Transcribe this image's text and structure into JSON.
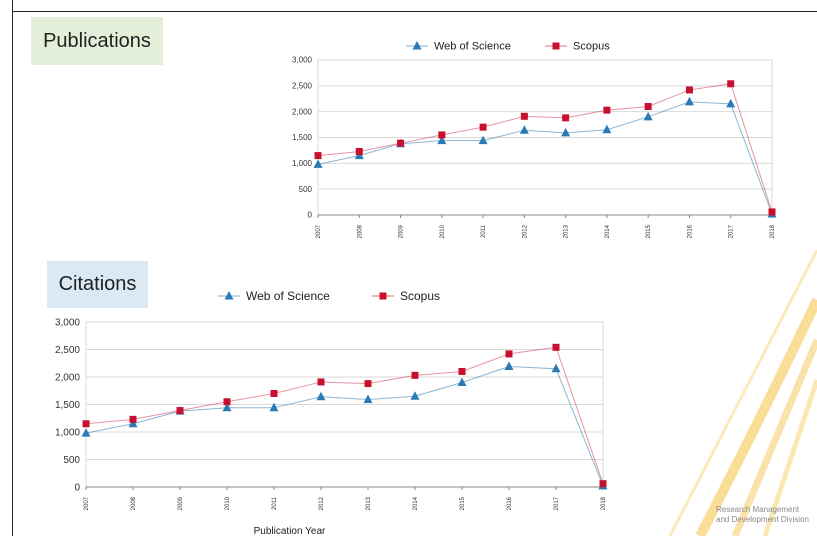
{
  "titles": {
    "publications": "Publications",
    "citations": "Citations"
  },
  "footer": {
    "line1": "Research Management",
    "line2": "and Development Division"
  },
  "colors": {
    "wos": "#2a7ab5",
    "scopus": "#c8102e",
    "grid": "#d9d9d9",
    "decor": "#f5c242"
  },
  "chart_data": [
    {
      "type": "line",
      "title": "",
      "xlabel": "",
      "ylabel": "",
      "categories": [
        "2007",
        "2008",
        "2009",
        "2010",
        "2011",
        "2012",
        "2013",
        "2014",
        "2015",
        "2016",
        "2017",
        "2018"
      ],
      "ylim": [
        0,
        3000
      ],
      "yticks": [
        "0",
        "500",
        "1,000",
        "1,500",
        "2,000",
        "2,500",
        "3,000"
      ],
      "grid": true,
      "legend": "top",
      "series": [
        {
          "name": "Web of Science",
          "marker": "triangle",
          "color": "#2a7ab5",
          "values": [
            980,
            1150,
            1380,
            1440,
            1440,
            1640,
            1590,
            1650,
            1900,
            2190,
            2150,
            20
          ]
        },
        {
          "name": "Scopus",
          "marker": "square",
          "color": "#c8102e",
          "values": [
            1150,
            1230,
            1390,
            1550,
            1700,
            1910,
            1880,
            2030,
            2100,
            2420,
            2540,
            60
          ]
        }
      ]
    },
    {
      "type": "line",
      "title": "",
      "xlabel": "Publication Year",
      "ylabel": "",
      "categories": [
        "2007",
        "2008",
        "2009",
        "2010",
        "2011",
        "2012",
        "2013",
        "2014",
        "2015",
        "2016",
        "2017",
        "2018"
      ],
      "ylim": [
        0,
        3000
      ],
      "yticks": [
        "0",
        "500",
        "1,000",
        "1,500",
        "2,000",
        "2,500",
        "3,000"
      ],
      "grid": true,
      "legend": "top",
      "series": [
        {
          "name": "Web of Science",
          "marker": "triangle",
          "color": "#2a7ab5",
          "values": [
            980,
            1150,
            1380,
            1440,
            1440,
            1640,
            1590,
            1650,
            1900,
            2190,
            2150,
            20
          ]
        },
        {
          "name": "Scopus",
          "marker": "square",
          "color": "#c8102e",
          "values": [
            1150,
            1230,
            1390,
            1550,
            1700,
            1910,
            1880,
            2030,
            2100,
            2420,
            2540,
            60
          ]
        }
      ]
    }
  ]
}
